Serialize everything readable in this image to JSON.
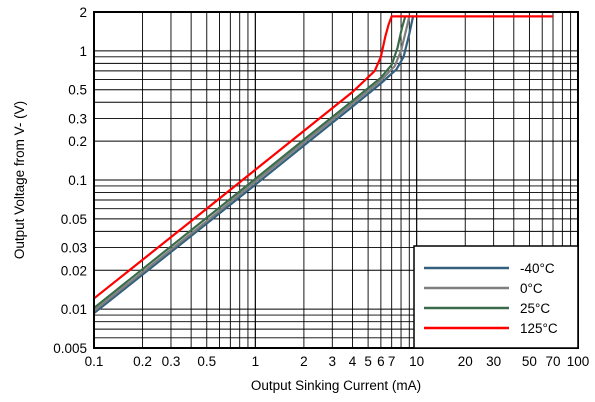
{
  "chart_data": {
    "type": "line",
    "title": "",
    "xlabel": "Output Sinking Current (mA)",
    "ylabel": "Output Voltage from V- (V)",
    "xscale": "log",
    "yscale": "log",
    "xlim": [
      0.1,
      100
    ],
    "ylim": [
      0.005,
      2
    ],
    "grid": true,
    "legend_position": "bottom-right",
    "x_ticks": [
      {
        "value": 0.1,
        "label": "0.1"
      },
      {
        "value": 0.2,
        "label": "0.2"
      },
      {
        "value": 0.3,
        "label": "0.3"
      },
      {
        "value": 0.5,
        "label": "0.5"
      },
      {
        "value": 1,
        "label": "1"
      },
      {
        "value": 2,
        "label": "2"
      },
      {
        "value": 3,
        "label": "3"
      },
      {
        "value": 4,
        "label": "4"
      },
      {
        "value": 5,
        "label": "5"
      },
      {
        "value": 6,
        "label": "6"
      },
      {
        "value": 7,
        "label": "7"
      },
      {
        "value": 10,
        "label": "10"
      },
      {
        "value": 20,
        "label": "20"
      },
      {
        "value": 30,
        "label": "30"
      },
      {
        "value": 50,
        "label": "50"
      },
      {
        "value": 70,
        "label": "70"
      },
      {
        "value": 100,
        "label": "100"
      }
    ],
    "y_ticks": [
      {
        "value": 0.005,
        "label": "0.005"
      },
      {
        "value": 0.01,
        "label": "0.01"
      },
      {
        "value": 0.02,
        "label": "0.02"
      },
      {
        "value": 0.03,
        "label": "0.03"
      },
      {
        "value": 0.05,
        "label": "0.05"
      },
      {
        "value": 0.1,
        "label": "0.1"
      },
      {
        "value": 0.2,
        "label": "0.2"
      },
      {
        "value": 0.3,
        "label": "0.3"
      },
      {
        "value": 0.5,
        "label": "0.5"
      },
      {
        "value": 1,
        "label": "1"
      },
      {
        "value": 2,
        "label": "2"
      }
    ],
    "series": [
      {
        "name": "-40°C",
        "color": "#34607f",
        "points": [
          [
            0.1,
            0.0093
          ],
          [
            0.5,
            0.046
          ],
          [
            1,
            0.092
          ],
          [
            2,
            0.185
          ],
          [
            4,
            0.37
          ],
          [
            6,
            0.56
          ],
          [
            7.5,
            0.72
          ],
          [
            8.3,
            0.9
          ],
          [
            9,
            1.35
          ],
          [
            9.5,
            1.85
          ]
        ]
      },
      {
        "name": "0°C",
        "color": "#7f7f7f",
        "points": [
          [
            0.1,
            0.0097
          ],
          [
            0.5,
            0.048
          ],
          [
            1,
            0.097
          ],
          [
            2,
            0.195
          ],
          [
            4,
            0.39
          ],
          [
            6,
            0.59
          ],
          [
            7.3,
            0.76
          ],
          [
            8,
            1.0
          ],
          [
            8.6,
            1.45
          ],
          [
            9,
            1.85
          ]
        ]
      },
      {
        "name": "25°C",
        "color": "#3a6b4a",
        "points": [
          [
            0.1,
            0.0102
          ],
          [
            0.5,
            0.051
          ],
          [
            1,
            0.102
          ],
          [
            2,
            0.205
          ],
          [
            4,
            0.41
          ],
          [
            6,
            0.62
          ],
          [
            7,
            0.78
          ],
          [
            7.6,
            1.05
          ],
          [
            8.1,
            1.5
          ],
          [
            8.5,
            1.85
          ]
        ]
      },
      {
        "name": "125°C",
        "color": "#ff0000",
        "points": [
          [
            0.1,
            0.0121
          ],
          [
            0.5,
            0.06
          ],
          [
            1,
            0.12
          ],
          [
            2,
            0.24
          ],
          [
            4,
            0.48
          ],
          [
            5.5,
            0.7
          ],
          [
            6,
            0.9
          ],
          [
            6.4,
            1.3
          ],
          [
            6.7,
            1.6
          ],
          [
            7,
            1.85
          ],
          [
            70,
            1.85
          ]
        ]
      }
    ]
  }
}
